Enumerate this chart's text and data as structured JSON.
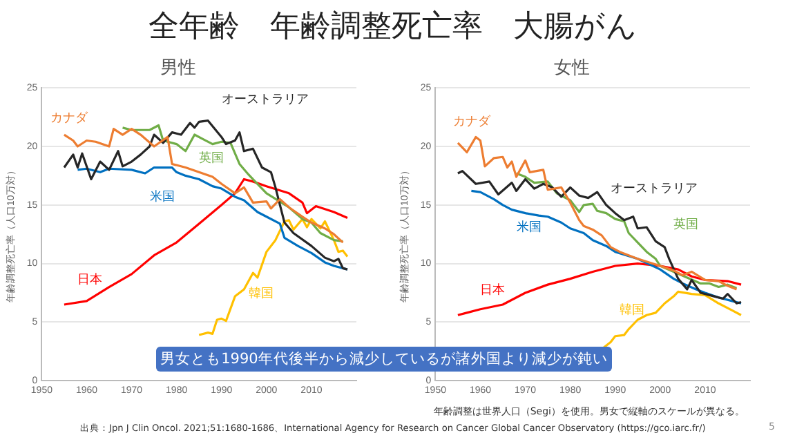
{
  "chart_data": [
    {
      "type": "line",
      "title": "男性",
      "ylabel": "年齢調整死亡率（人口10万対）",
      "xlim": [
        1950,
        2020
      ],
      "xticks": [
        1950,
        1960,
        1970,
        1980,
        1990,
        2000,
        2010
      ],
      "ylim": [
        0,
        25
      ],
      "yticks": [
        0,
        5,
        10,
        15,
        20,
        25
      ],
      "grid": "y",
      "legend": false,
      "marker": "none",
      "line_style": "solid",
      "annotations": [
        "全年齢　年齢調整死亡率　大腸がん"
      ],
      "series": [
        {
          "name": "カナダ",
          "color": "#ed7d31",
          "x": [
            1955,
            1957,
            1958,
            1960,
            1962,
            1965,
            1966,
            1968,
            1970,
            1972,
            1975,
            1978,
            1979,
            1982,
            1985,
            1988,
            1990,
            1993,
            1995,
            1997,
            2000,
            2001,
            2003,
            2005,
            2008,
            2010,
            2013,
            2015,
            2017
          ],
          "values": [
            21.0,
            20.5,
            20.0,
            20.5,
            20.4,
            20.0,
            21.5,
            21.0,
            21.5,
            21.0,
            20.0,
            20.8,
            18.5,
            18.2,
            17.8,
            17.4,
            16.8,
            16.0,
            16.5,
            15.2,
            15.3,
            14.7,
            15.5,
            14.8,
            14.0,
            13.5,
            13.0,
            12.5,
            11.8
          ]
        },
        {
          "name": "オーストラリア",
          "color": "#262626",
          "x": [
            1955,
            1957,
            1958,
            1959,
            1961,
            1963,
            1965,
            1967,
            1968,
            1970,
            1972,
            1974,
            1975,
            1977,
            1979,
            1981,
            1983,
            1984,
            1985,
            1987,
            1990,
            1991,
            1993,
            1994,
            1995,
            1997,
            1999,
            2001,
            2002,
            2003,
            2004,
            2006,
            2010,
            2013,
            2015,
            2016,
            2017,
            2018
          ],
          "values": [
            18.2,
            19.3,
            18.2,
            19.4,
            17.2,
            18.7,
            18.0,
            19.6,
            18.3,
            18.7,
            19.3,
            20.0,
            21.0,
            20.3,
            21.2,
            21.0,
            22.0,
            21.6,
            22.1,
            22.2,
            20.8,
            20.2,
            20.5,
            21.2,
            19.6,
            19.8,
            18.2,
            17.8,
            16.5,
            15.0,
            13.5,
            12.6,
            11.5,
            10.5,
            10.2,
            10.4,
            9.6,
            9.5
          ]
        },
        {
          "name": "英国",
          "color": "#70ad47",
          "x": [
            1968,
            1970,
            1974,
            1976,
            1977,
            1980,
            1982,
            1984,
            1986,
            1988,
            1990,
            1992,
            1994,
            1996,
            1998,
            2000,
            2005,
            2008,
            2010,
            2012,
            2015,
            2017
          ],
          "values": [
            21.6,
            21.4,
            21.4,
            21.8,
            20.5,
            20.2,
            19.6,
            21.0,
            20.6,
            20.2,
            20.4,
            20.3,
            18.5,
            17.6,
            16.8,
            16.0,
            14.8,
            13.8,
            13.5,
            12.6,
            12.0,
            11.9
          ]
        },
        {
          "name": "米国",
          "color": "#0070c0",
          "x": [
            1958,
            1960,
            1963,
            1965,
            1970,
            1973,
            1975,
            1979,
            1980,
            1982,
            1985,
            1988,
            1990,
            1993,
            1995,
            1998,
            2000,
            2003,
            2004,
            2007,
            2010,
            2013,
            2015,
            2018
          ],
          "values": [
            18.0,
            18.1,
            17.8,
            18.1,
            18.0,
            17.7,
            18.2,
            18.2,
            17.8,
            17.5,
            17.2,
            16.6,
            16.4,
            15.7,
            15.4,
            14.4,
            14.0,
            13.4,
            12.2,
            11.5,
            10.9,
            10.1,
            9.8,
            9.5
          ]
        },
        {
          "name": "日本",
          "color": "#ff0000",
          "x": [
            1955,
            1960,
            1965,
            1970,
            1975,
            1980,
            1985,
            1990,
            1993,
            1995,
            1997,
            2000,
            2005,
            2008,
            2009,
            2011,
            2015,
            2018
          ],
          "values": [
            6.5,
            6.8,
            8.0,
            9.1,
            10.7,
            11.8,
            13.4,
            15.0,
            16.0,
            17.2,
            17.0,
            16.6,
            16.0,
            15.2,
            14.3,
            14.9,
            14.4,
            13.9
          ]
        },
        {
          "name": "韓国",
          "color": "#ffc000",
          "x": [
            1985,
            1987,
            1988,
            1989,
            1990,
            1991,
            1993,
            1995,
            1997,
            1998,
            2000,
            2002,
            2004,
            2005,
            2006,
            2008,
            2009,
            2010,
            2012,
            2013,
            2015,
            2016,
            2017,
            2018
          ],
          "values": [
            3.9,
            4.1,
            4.0,
            5.2,
            5.3,
            5.1,
            7.2,
            7.8,
            9.2,
            8.8,
            11.0,
            12.0,
            13.6,
            13.7,
            12.9,
            13.8,
            13.1,
            13.8,
            13.0,
            13.6,
            12.0,
            11.0,
            11.1,
            10.6
          ]
        }
      ]
    },
    {
      "type": "line",
      "title": "女性",
      "ylabel": "年齢調整死亡率（人口10万対）",
      "xlim": [
        1950,
        2020
      ],
      "xticks": [
        1950,
        1960,
        1970,
        1980,
        1990,
        2000,
        2010
      ],
      "ylim": [
        0,
        25
      ],
      "yticks": [
        0,
        5,
        10,
        15,
        20,
        25
      ],
      "grid": "y",
      "legend": false,
      "marker": "none",
      "line_style": "solid",
      "annotations": [
        "男女とも1990年代後半から減少しているが諸外国より減少が鈍い",
        "年齢調整は世界人口（Segi）を使用。男女で縦軸のスケールが異なる。",
        "出典：Jpn J Clin Oncol. 2021;51:1680-1686、International Agency for Research on Cancer Global Cancer Observatory (https://gco.iarc.fr/)",
        "5"
      ],
      "series": [
        {
          "name": "カナダ",
          "color": "#ed7d31",
          "x": [
            1955,
            1957,
            1959,
            1960,
            1961,
            1963,
            1965,
            1966,
            1967,
            1968,
            1970,
            1971,
            1974,
            1975,
            1978,
            1980,
            1982,
            1983,
            1985,
            1987,
            1989,
            1991,
            1995,
            2000,
            2003,
            2005,
            2007,
            2010,
            2013,
            2015,
            2017
          ],
          "values": [
            20.3,
            19.5,
            20.8,
            20.5,
            18.3,
            19.0,
            19.1,
            18.2,
            18.7,
            17.4,
            18.8,
            17.8,
            18.0,
            16.3,
            16.5,
            15.2,
            13.7,
            13.2,
            12.9,
            12.4,
            11.4,
            11.0,
            10.4,
            9.8,
            9.4,
            9.0,
            9.3,
            8.6,
            8.5,
            8.1,
            7.8
          ]
        },
        {
          "name": "オーストラリア",
          "color": "#262626",
          "x": [
            1955,
            1956,
            1959,
            1962,
            1964,
            1967,
            1968,
            1970,
            1972,
            1974,
            1976,
            1978,
            1980,
            1982,
            1984,
            1986,
            1988,
            1990,
            1992,
            1994,
            1995,
            1997,
            1999,
            2001,
            2002,
            2004,
            2006,
            2007,
            2009,
            2012,
            2014,
            2015,
            2017,
            2018
          ],
          "values": [
            17.7,
            17.9,
            16.8,
            17.0,
            15.9,
            16.9,
            16.2,
            17.2,
            16.4,
            16.8,
            16.5,
            15.7,
            16.5,
            15.8,
            15.6,
            16.1,
            15.0,
            14.3,
            13.7,
            14.0,
            13.0,
            13.1,
            11.9,
            11.4,
            10.4,
            8.7,
            7.8,
            8.6,
            7.5,
            7.2,
            7.0,
            7.4,
            6.6,
            6.7
          ]
        },
        {
          "name": "英国",
          "color": "#70ad47",
          "x": [
            1968,
            1970,
            1972,
            1975,
            1977,
            1980,
            1982,
            1983,
            1985,
            1986,
            1988,
            1990,
            1992,
            1993,
            1995,
            1997,
            1999,
            2000,
            2003,
            2006,
            2009,
            2011,
            2013,
            2015,
            2017
          ],
          "values": [
            17.7,
            17.4,
            16.9,
            17.0,
            16.0,
            15.4,
            14.4,
            15.0,
            15.1,
            14.5,
            14.3,
            13.8,
            13.6,
            12.6,
            11.8,
            11.0,
            10.4,
            9.8,
            9.3,
            8.8,
            8.3,
            8.3,
            8.0,
            8.2,
            7.9
          ]
        },
        {
          "name": "米国",
          "color": "#0070c0",
          "x": [
            1958,
            1960,
            1963,
            1965,
            1967,
            1970,
            1973,
            1975,
            1978,
            1980,
            1983,
            1985,
            1988,
            1990,
            1995,
            2000,
            2003,
            2005,
            2008,
            2010,
            2013,
            2016,
            2018
          ],
          "values": [
            16.2,
            16.1,
            15.5,
            15.0,
            14.6,
            14.3,
            14.1,
            14.0,
            13.5,
            13.0,
            12.6,
            12.0,
            11.5,
            11.0,
            10.4,
            9.5,
            8.7,
            8.3,
            7.8,
            7.5,
            7.1,
            6.8,
            6.6
          ]
        },
        {
          "name": "日本",
          "color": "#ff0000",
          "x": [
            1955,
            1957,
            1960,
            1965,
            1970,
            1975,
            1980,
            1985,
            1990,
            1995,
            2000,
            2004,
            2007,
            2010,
            2015,
            2018
          ],
          "values": [
            5.6,
            5.8,
            6.1,
            6.5,
            7.5,
            8.2,
            8.7,
            9.3,
            9.8,
            10.0,
            9.8,
            9.5,
            8.9,
            8.6,
            8.5,
            8.2
          ]
        },
        {
          "name": "韓国",
          "color": "#ffc000",
          "x": [
            1987,
            1989,
            1990,
            1992,
            1993,
            1995,
            1997,
            1999,
            2001,
            2003,
            2004,
            2007,
            2010,
            2013,
            2016,
            2018
          ],
          "values": [
            2.7,
            3.3,
            3.8,
            3.9,
            4.4,
            5.2,
            5.6,
            5.8,
            6.6,
            7.2,
            7.6,
            7.4,
            7.3,
            6.6,
            6.0,
            5.6
          ]
        }
      ]
    }
  ]
}
